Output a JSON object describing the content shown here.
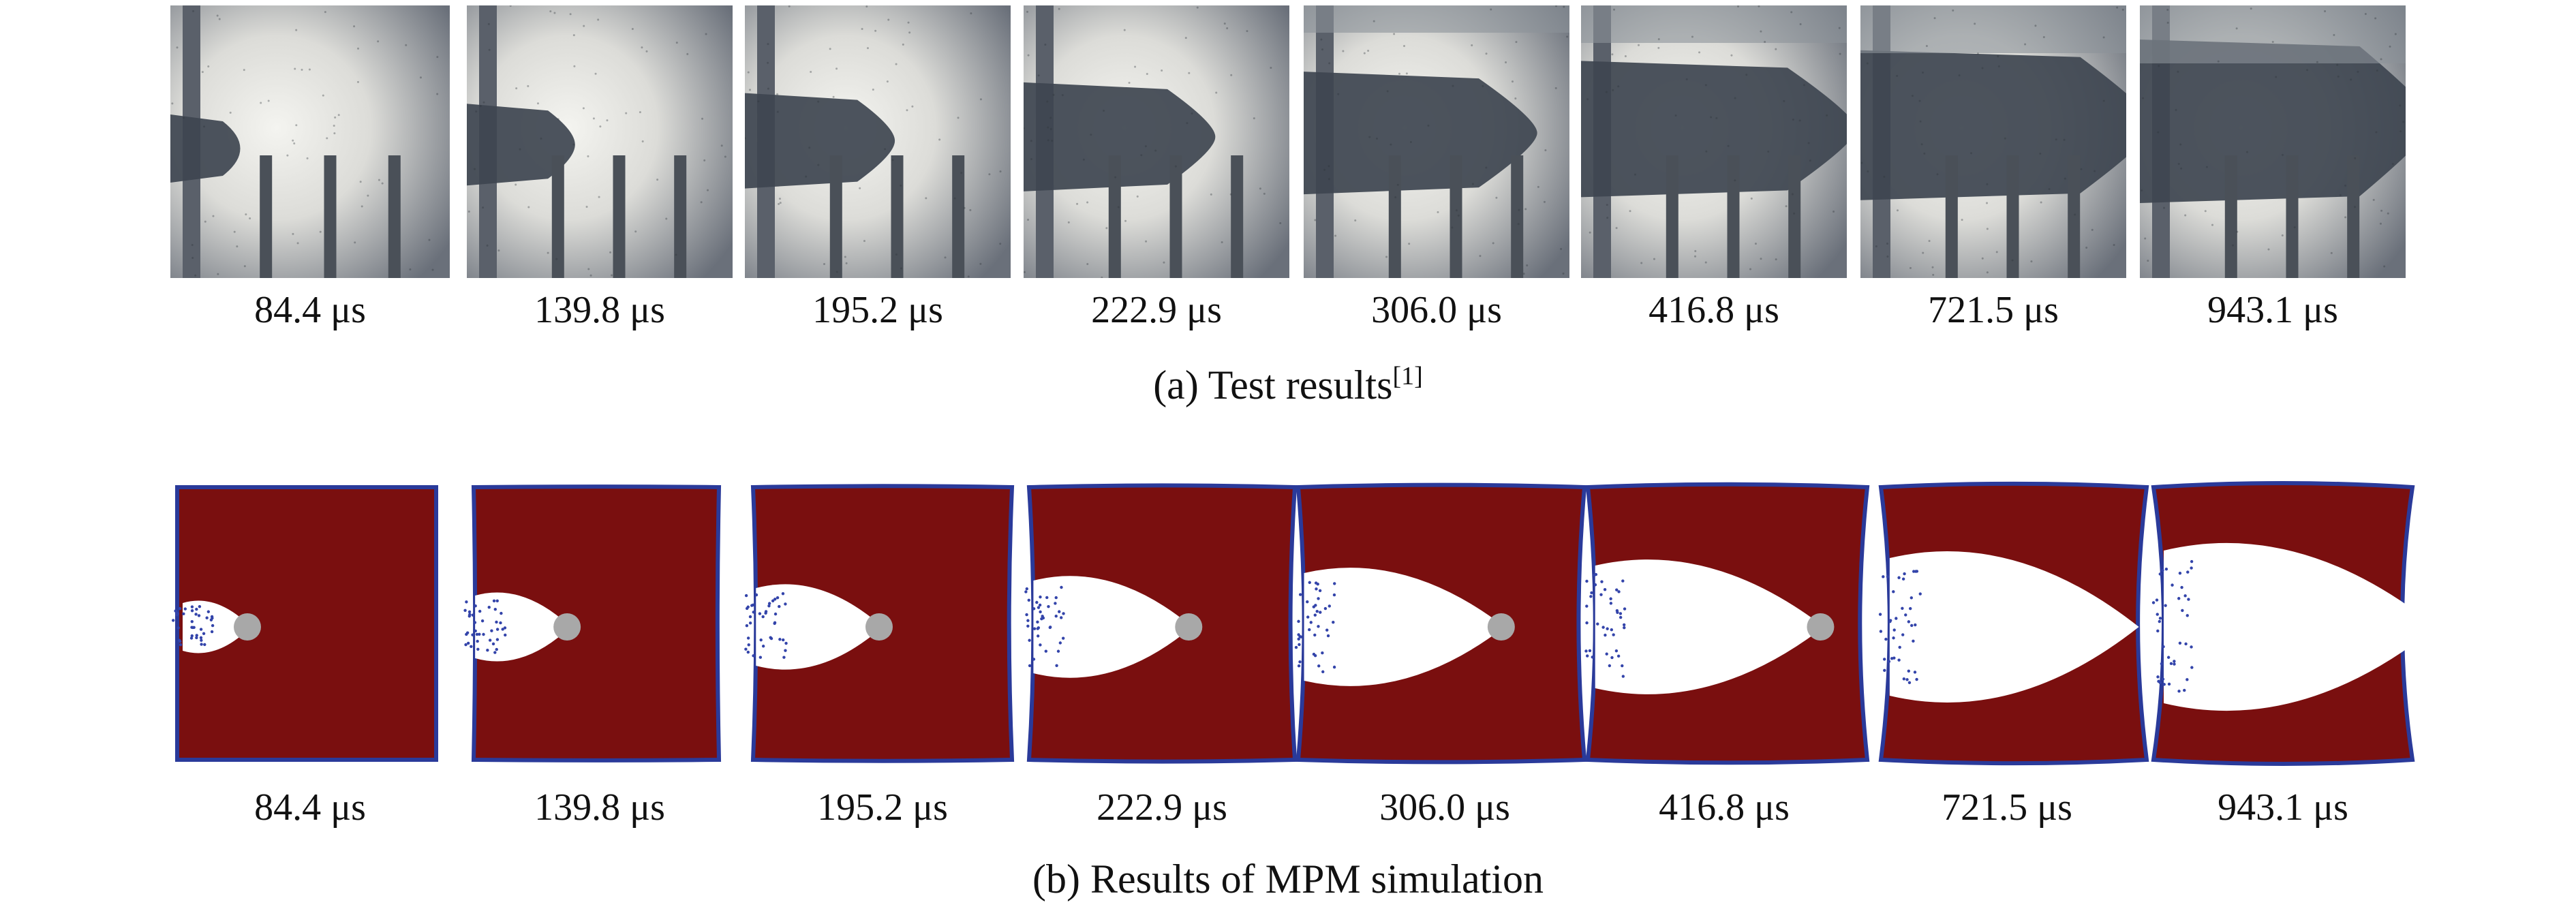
{
  "test_row": {
    "labels": [
      "84.4 μs",
      "139.8 μs",
      "195.2 μs",
      "222.9 μs",
      "306.0 μs",
      "416.8 μs",
      "721.5 μs",
      "943.1 μs"
    ],
    "caption": "(a) Test results",
    "caption_ref": "[1]"
  },
  "sim_row": {
    "labels": [
      "84.4 μs",
      "139.8 μs",
      "195.2 μs",
      "222.9 μs",
      "306.0 μs",
      "416.8 μs",
      "721.5 μs",
      "943.1 μs"
    ],
    "caption": "(b) Results of MPM simulation"
  },
  "colors": {
    "target": "#7a0f0f",
    "target_border": "#2a3a9a",
    "cavity": "#ffffff",
    "projectile": "#a8a8a8",
    "debris": "#3344aa",
    "photo_dark": "#3e4550",
    "photo_light": "#f4f4f0"
  }
}
